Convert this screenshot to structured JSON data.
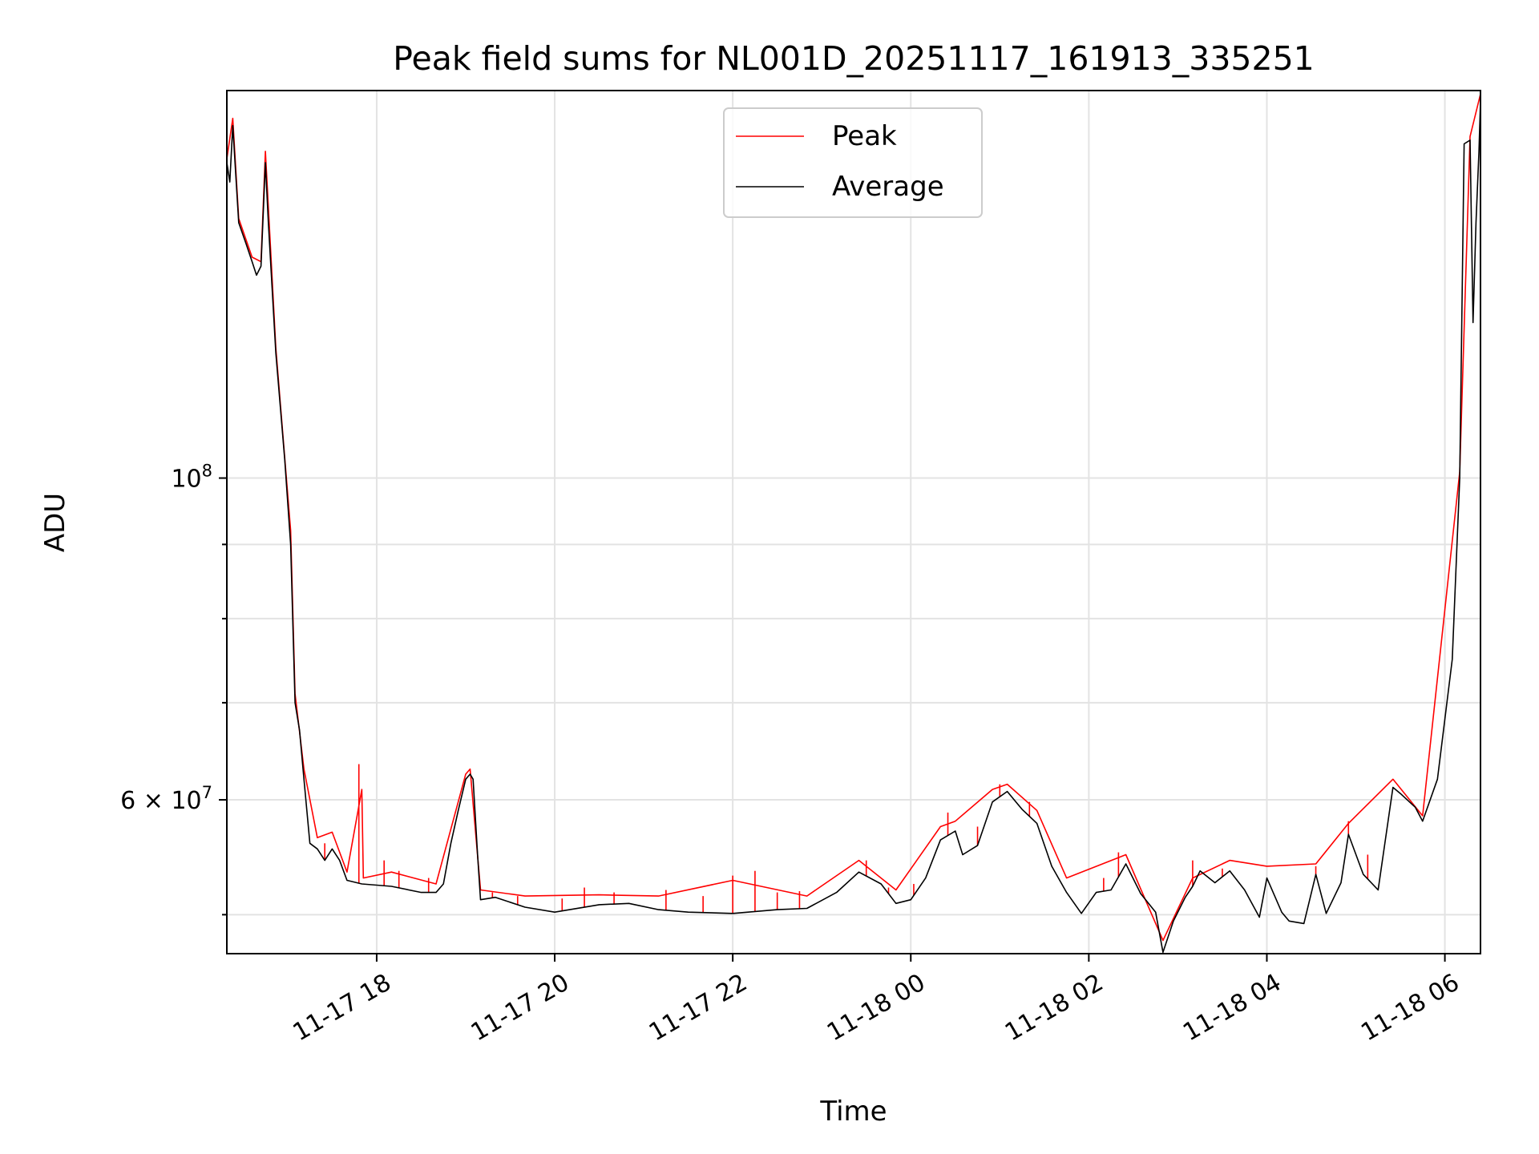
{
  "chart_data": {
    "type": "line",
    "title": "Peak field sums for NL001D_20251117_161913_335251",
    "xlabel": "Time",
    "ylabel": "ADU",
    "y_scale": "log",
    "ylim": [
      47000000,
      185000000
    ],
    "xlim": [
      "2025-11-17 16:19",
      "2025-11-18 06:24"
    ],
    "grid": true,
    "legend_position": "top-center",
    "x_ticks": [
      {
        "label": "11-17 18",
        "x": "2025-11-17 18:00"
      },
      {
        "label": "11-17 20",
        "x": "2025-11-17 20:00"
      },
      {
        "label": "11-17 22",
        "x": "2025-11-17 22:00"
      },
      {
        "label": "11-18 00",
        "x": "2025-11-18 00:00"
      },
      {
        "label": "11-18 02",
        "x": "2025-11-18 02:00"
      },
      {
        "label": "11-18 04",
        "x": "2025-11-18 04:00"
      },
      {
        "label": "11-18 06",
        "x": "2025-11-18 06:00"
      }
    ],
    "y_ticks_major": [
      {
        "value": 100000000,
        "mantissa": "",
        "base": "10",
        "exp": "8"
      },
      {
        "value": 60000000,
        "mantissa": "6 × ",
        "base": "10",
        "exp": "7"
      }
    ],
    "y_ticks_minor": [
      50000000,
      70000000,
      80000000,
      90000000
    ],
    "series": [
      {
        "name": "Average",
        "color": "#000000",
        "points": [
          [
            "2025-11-17 16:19",
            165000000
          ],
          [
            "2025-11-17 16:21",
            160000000
          ],
          [
            "2025-11-17 16:23",
            175000000
          ],
          [
            "2025-11-17 16:25",
            162000000
          ],
          [
            "2025-11-17 16:27",
            150000000
          ],
          [
            "2025-11-17 16:32",
            145000000
          ],
          [
            "2025-11-17 16:36",
            141000000
          ],
          [
            "2025-11-17 16:39",
            138000000
          ],
          [
            "2025-11-17 16:42",
            140000000
          ],
          [
            "2025-11-17 16:45",
            165000000
          ],
          [
            "2025-11-17 16:47",
            150000000
          ],
          [
            "2025-11-17 16:52",
            122000000
          ],
          [
            "2025-11-17 16:58",
            103000000
          ],
          [
            "2025-11-17 17:02",
            90000000
          ],
          [
            "2025-11-17 17:05",
            70000000
          ],
          [
            "2025-11-17 17:08",
            67000000
          ],
          [
            "2025-11-17 17:11",
            62000000
          ],
          [
            "2025-11-17 17:15",
            56000000
          ],
          [
            "2025-11-17 17:20",
            55500000
          ],
          [
            "2025-11-17 17:25",
            54500000
          ],
          [
            "2025-11-17 17:30",
            55500000
          ],
          [
            "2025-11-17 17:35",
            54500000
          ],
          [
            "2025-11-17 17:40",
            52800000
          ],
          [
            "2025-11-17 17:50",
            52500000
          ],
          [
            "2025-11-17 18:10",
            52300000
          ],
          [
            "2025-11-17 18:30",
            51800000
          ],
          [
            "2025-11-17 18:40",
            51800000
          ],
          [
            "2025-11-17 18:45",
            52500000
          ],
          [
            "2025-11-17 18:50",
            56000000
          ],
          [
            "2025-11-17 18:55",
            59000000
          ],
          [
            "2025-11-17 19:00",
            62000000
          ],
          [
            "2025-11-17 19:03",
            62500000
          ],
          [
            "2025-11-17 19:05",
            62000000
          ],
          [
            "2025-11-17 19:08",
            55000000
          ],
          [
            "2025-11-17 19:10",
            51200000
          ],
          [
            "2025-11-17 19:20",
            51400000
          ],
          [
            "2025-11-17 19:40",
            50600000
          ],
          [
            "2025-11-17 20:00",
            50200000
          ],
          [
            "2025-11-17 20:30",
            50800000
          ],
          [
            "2025-11-17 20:50",
            50900000
          ],
          [
            "2025-11-17 21:10",
            50400000
          ],
          [
            "2025-11-17 21:30",
            50200000
          ],
          [
            "2025-11-17 22:00",
            50100000
          ],
          [
            "2025-11-17 22:30",
            50400000
          ],
          [
            "2025-11-17 22:50",
            50500000
          ],
          [
            "2025-11-17 23:10",
            51800000
          ],
          [
            "2025-11-17 23:25",
            53500000
          ],
          [
            "2025-11-17 23:40",
            52500000
          ],
          [
            "2025-11-17 23:50",
            50900000
          ],
          [
            "2025-11-18 00:00",
            51200000
          ],
          [
            "2025-11-18 00:10",
            53000000
          ],
          [
            "2025-11-18 00:20",
            56300000
          ],
          [
            "2025-11-18 00:30",
            57100000
          ],
          [
            "2025-11-18 00:35",
            55000000
          ],
          [
            "2025-11-18 00:45",
            55800000
          ],
          [
            "2025-11-18 00:55",
            59800000
          ],
          [
            "2025-11-18 01:05",
            60800000
          ],
          [
            "2025-11-18 01:15",
            59100000
          ],
          [
            "2025-11-18 01:25",
            57800000
          ],
          [
            "2025-11-18 01:35",
            54000000
          ],
          [
            "2025-11-18 01:45",
            51800000
          ],
          [
            "2025-11-18 01:55",
            50100000
          ],
          [
            "2025-11-18 02:05",
            51800000
          ],
          [
            "2025-11-18 02:15",
            52000000
          ],
          [
            "2025-11-18 02:25",
            54200000
          ],
          [
            "2025-11-18 02:35",
            51700000
          ],
          [
            "2025-11-18 02:45",
            50200000
          ],
          [
            "2025-11-18 02:50",
            47100000
          ],
          [
            "2025-11-18 02:57",
            49500000
          ],
          [
            "2025-11-18 03:05",
            51400000
          ],
          [
            "2025-11-18 03:10",
            52300000
          ],
          [
            "2025-11-18 03:15",
            53600000
          ],
          [
            "2025-11-18 03:25",
            52600000
          ],
          [
            "2025-11-18 03:35",
            53600000
          ],
          [
            "2025-11-18 03:45",
            52000000
          ],
          [
            "2025-11-18 03:55",
            49800000
          ],
          [
            "2025-11-18 04:00",
            53000000
          ],
          [
            "2025-11-18 04:10",
            50200000
          ],
          [
            "2025-11-18 04:15",
            49500000
          ],
          [
            "2025-11-18 04:25",
            49300000
          ],
          [
            "2025-11-18 04:33",
            53300000
          ],
          [
            "2025-11-18 04:40",
            50100000
          ],
          [
            "2025-11-18 04:50",
            52600000
          ],
          [
            "2025-11-18 04:55",
            56800000
          ],
          [
            "2025-11-18 05:05",
            53300000
          ],
          [
            "2025-11-18 05:15",
            52000000
          ],
          [
            "2025-11-18 05:25",
            61200000
          ],
          [
            "2025-11-18 05:30",
            60600000
          ],
          [
            "2025-11-18 05:40",
            59300000
          ],
          [
            "2025-11-18 05:45",
            58000000
          ],
          [
            "2025-11-18 05:55",
            62000000
          ],
          [
            "2025-11-18 06:05",
            75000000
          ],
          [
            "2025-11-18 06:10",
            100000000
          ],
          [
            "2025-11-18 06:13",
            170000000
          ],
          [
            "2025-11-18 06:17",
            171000000
          ],
          [
            "2025-11-18 06:19",
            128000000
          ],
          [
            "2025-11-18 06:21",
            150000000
          ],
          [
            "2025-11-18 06:23",
            168000000
          ],
          [
            "2025-11-18 06:24",
            182000000
          ]
        ]
      },
      {
        "name": "Peak",
        "color": "#ff0000",
        "points": [
          [
            "2025-11-17 16:19",
            166000000
          ],
          [
            "2025-11-17 16:23",
            177000000
          ],
          [
            "2025-11-17 16:27",
            151000000
          ],
          [
            "2025-11-17 16:36",
            142000000
          ],
          [
            "2025-11-17 16:42",
            141000000
          ],
          [
            "2025-11-17 16:45",
            168000000
          ],
          [
            "2025-11-17 16:52",
            123000000
          ],
          [
            "2025-11-17 17:02",
            92000000
          ],
          [
            "2025-11-17 17:05",
            71000000
          ],
          [
            "2025-11-17 17:11",
            63000000
          ],
          [
            "2025-11-17 17:20",
            56500000
          ],
          [
            "2025-11-17 17:30",
            57000000
          ],
          [
            "2025-11-17 17:40",
            53500000
          ],
          [
            "2025-11-17 17:50",
            61000000
          ],
          [
            "2025-11-17 17:51",
            53000000
          ],
          [
            "2025-11-17 18:10",
            53500000
          ],
          [
            "2025-11-17 18:40",
            52500000
          ],
          [
            "2025-11-17 19:00",
            62500000
          ],
          [
            "2025-11-17 19:03",
            63000000
          ],
          [
            "2025-11-17 19:10",
            52000000
          ],
          [
            "2025-11-17 19:40",
            51500000
          ],
          [
            "2025-11-17 20:30",
            51600000
          ],
          [
            "2025-11-17 21:10",
            51500000
          ],
          [
            "2025-11-17 22:00",
            52800000
          ],
          [
            "2025-11-17 22:50",
            51500000
          ],
          [
            "2025-11-17 23:25",
            54500000
          ],
          [
            "2025-11-17 23:50",
            52000000
          ],
          [
            "2025-11-18 00:20",
            57500000
          ],
          [
            "2025-11-18 00:30",
            58000000
          ],
          [
            "2025-11-18 00:55",
            61000000
          ],
          [
            "2025-11-18 01:05",
            61500000
          ],
          [
            "2025-11-18 01:25",
            59000000
          ],
          [
            "2025-11-18 01:45",
            53000000
          ],
          [
            "2025-11-18 02:25",
            55000000
          ],
          [
            "2025-11-18 02:50",
            48000000
          ],
          [
            "2025-11-18 03:10",
            53000000
          ],
          [
            "2025-11-18 03:35",
            54500000
          ],
          [
            "2025-11-18 04:00",
            54000000
          ],
          [
            "2025-11-18 04:33",
            54200000
          ],
          [
            "2025-11-18 04:55",
            57800000
          ],
          [
            "2025-11-18 05:25",
            62000000
          ],
          [
            "2025-11-18 05:45",
            58500000
          ],
          [
            "2025-11-18 06:10",
            101000000
          ],
          [
            "2025-11-18 06:17",
            172000000
          ],
          [
            "2025-11-18 06:24",
            184000000
          ]
        ]
      }
    ],
    "peak_spikes": [
      [
        "2025-11-17 17:25",
        56000000
      ],
      [
        "2025-11-17 17:48",
        63500000
      ],
      [
        "2025-11-17 18:05",
        54500000
      ],
      [
        "2025-11-17 18:15",
        53600000
      ],
      [
        "2025-11-17 18:35",
        53000000
      ],
      [
        "2025-11-17 19:18",
        51800000
      ],
      [
        "2025-11-17 19:35",
        51500000
      ],
      [
        "2025-11-17 20:05",
        51300000
      ],
      [
        "2025-11-17 20:20",
        52200000
      ],
      [
        "2025-11-17 20:40",
        51800000
      ],
      [
        "2025-11-17 21:15",
        52000000
      ],
      [
        "2025-11-17 21:40",
        51500000
      ],
      [
        "2025-11-17 22:00",
        53200000
      ],
      [
        "2025-11-17 22:15",
        53600000
      ],
      [
        "2025-11-17 22:30",
        51800000
      ],
      [
        "2025-11-17 22:45",
        51900000
      ],
      [
        "2025-11-17 23:30",
        54500000
      ],
      [
        "2025-11-17 23:45",
        52200000
      ],
      [
        "2025-11-18 00:02",
        52500000
      ],
      [
        "2025-11-18 00:25",
        58800000
      ],
      [
        "2025-11-18 00:45",
        57500000
      ],
      [
        "2025-11-18 01:00",
        61500000
      ],
      [
        "2025-11-18 01:20",
        59800000
      ],
      [
        "2025-11-18 02:10",
        53000000
      ],
      [
        "2025-11-18 02:20",
        55200000
      ],
      [
        "2025-11-18 03:10",
        54500000
      ],
      [
        "2025-11-18 03:30",
        53800000
      ],
      [
        "2025-11-18 04:33",
        54000000
      ],
      [
        "2025-11-18 04:55",
        58000000
      ],
      [
        "2025-11-18 05:08",
        55000000
      ]
    ]
  },
  "legend": {
    "items": [
      {
        "label": "Peak",
        "color": "#ff0000"
      },
      {
        "label": "Average",
        "color": "#000000"
      }
    ]
  }
}
